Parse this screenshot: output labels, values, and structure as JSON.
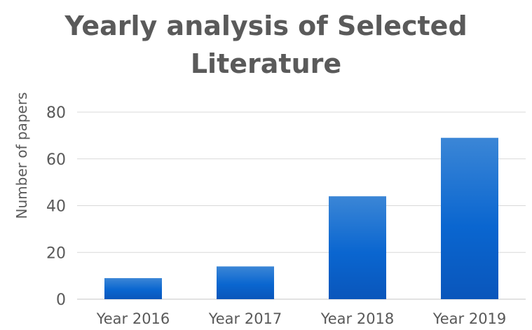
{
  "chart_data": {
    "type": "bar",
    "title_lines": [
      "Yearly analysis of Selected",
      "Literature"
    ],
    "xlabel": "",
    "ylabel": "Number of  papers",
    "categories": [
      "Year 2016",
      "Year 2017",
      "Year 2018",
      "Year 2019"
    ],
    "values": [
      9,
      14,
      44,
      69
    ],
    "ylim": [
      0,
      80
    ],
    "yticks": [
      0,
      20,
      40,
      60,
      80
    ],
    "grid": true,
    "legend": "none",
    "bar_color": "#0a66d0",
    "bar_color_light": "#3b86d6",
    "bar_color_dark": "#0a56bb",
    "grid_color": "#d9d9d9",
    "text_color": "#595959"
  }
}
